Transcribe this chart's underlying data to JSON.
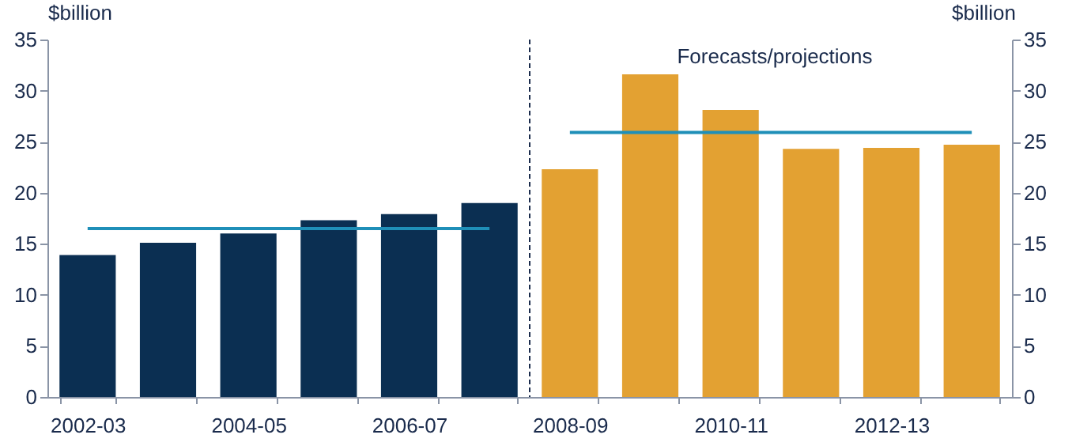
{
  "chart_data": {
    "type": "bar",
    "ylabel": "$billion",
    "y2label": "$billion",
    "categories": [
      "2002-03",
      null,
      "2004-05",
      null,
      "2006-07",
      null,
      "2008-09",
      null,
      "2010-11",
      null,
      "2012-13",
      null
    ],
    "series": [
      {
        "type": "bar",
        "values": [
          13.9,
          15.1,
          16.0,
          17.3,
          17.9,
          19.0,
          22.3,
          31.6,
          28.1,
          24.3,
          24.4,
          24.7
        ],
        "colors": [
          "#0b2f52",
          "#0b2f52",
          "#0b2f52",
          "#0b2f52",
          "#0b2f52",
          "#0b2f52",
          "#e3a132",
          "#e3a132",
          "#e3a132",
          "#e3a132",
          "#e3a132",
          "#e3a132"
        ]
      },
      {
        "type": "line",
        "color": "#1f8fb8",
        "values": [
          16.5,
          16.5,
          16.5,
          16.5,
          16.5,
          16.5,
          null,
          null,
          null,
          null,
          null,
          null
        ]
      },
      {
        "type": "line",
        "color": "#1f8fb8",
        "values": [
          null,
          null,
          null,
          null,
          null,
          null,
          25.9,
          25.9,
          25.9,
          25.9,
          25.9,
          25.9
        ]
      }
    ],
    "ylim": [
      0,
      35
    ],
    "yticks": [
      0,
      5,
      10,
      15,
      20,
      25,
      30,
      35
    ],
    "y2lim": [
      0,
      35
    ],
    "y2ticks": [
      0,
      5,
      10,
      15,
      20,
      25,
      30,
      35
    ],
    "ref_lines": [
      {
        "axis": "x",
        "value": "2008-09",
        "line_style": "dashed",
        "color": "#1a2b4c"
      }
    ],
    "annotations": [
      "Forecasts/projections"
    ],
    "grid": false
  }
}
